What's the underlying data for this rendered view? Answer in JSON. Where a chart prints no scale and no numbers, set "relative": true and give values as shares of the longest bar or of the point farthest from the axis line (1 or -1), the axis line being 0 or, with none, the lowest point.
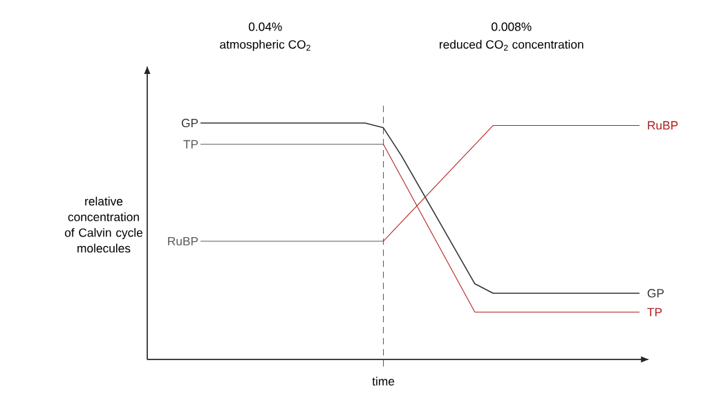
{
  "chart_data": {
    "type": "line",
    "relative": true,
    "xlabel": "time",
    "ylabel": "relative concentration of Calvin cycle molecules",
    "annotations": [
      "0.04%",
      "atmospheric CO$_{2}$",
      "0.008%",
      "reduced CO$_{2}$ concentration"
    ],
    "categories": [
      null,
      null,
      null,
      null,
      null,
      null,
      null,
      null,
      null,
      null,
      null,
      null,
      null,
      null,
      null,
      null,
      null,
      null,
      null,
      null,
      null,
      null,
      null,
      null,
      null
    ],
    "series": [
      {
        "name": "GP",
        "color": "#333333",
        "values": [
          1,
          1,
          1,
          1,
          1,
          1,
          1,
          1,
          1,
          1,
          0.98,
          0.86,
          0.725,
          0.59,
          0.455,
          0.32,
          0.28,
          0.28,
          0.28,
          0.28,
          0.28,
          0.28,
          0.28,
          0.28,
          0.28
        ]
      },
      {
        "name": "TP",
        "color": "#5a5a5a",
        "values": [
          0.91,
          0.91,
          0.91,
          0.91,
          0.91,
          0.91,
          0.91,
          0.91,
          0.91,
          0.91,
          0.91,
          null,
          null,
          null,
          null,
          null,
          null,
          null,
          null,
          null,
          null,
          null,
          null,
          null,
          null
        ]
      },
      {
        "name": "TP",
        "color": "#b01e1e",
        "values": [
          null,
          null,
          null,
          null,
          null,
          null,
          null,
          null,
          null,
          null,
          0.91,
          0.768,
          0.626,
          0.484,
          0.342,
          0.2,
          0.2,
          0.2,
          0.2,
          0.2,
          0.2,
          0.2,
          0.2,
          0.2,
          0.2
        ]
      },
      {
        "name": "RuBP",
        "color": "#5a5a5a",
        "values": [
          0.5,
          0.5,
          0.5,
          0.5,
          0.5,
          0.5,
          0.5,
          0.5,
          0.5,
          0.5,
          0.5,
          null,
          null,
          null,
          null,
          null,
          null,
          null,
          null,
          null,
          null,
          null,
          null,
          null,
          null
        ]
      },
      {
        "name": "RuBP",
        "color": "#b01e1e",
        "values": [
          null,
          null,
          null,
          null,
          null,
          null,
          null,
          null,
          null,
          null,
          0.5,
          0.582,
          0.663,
          0.745,
          0.827,
          0.908,
          0.99,
          0.99,
          0.99,
          0.99,
          0.99,
          0.99,
          0.99,
          0.99,
          0.99
        ]
      }
    ]
  }
}
